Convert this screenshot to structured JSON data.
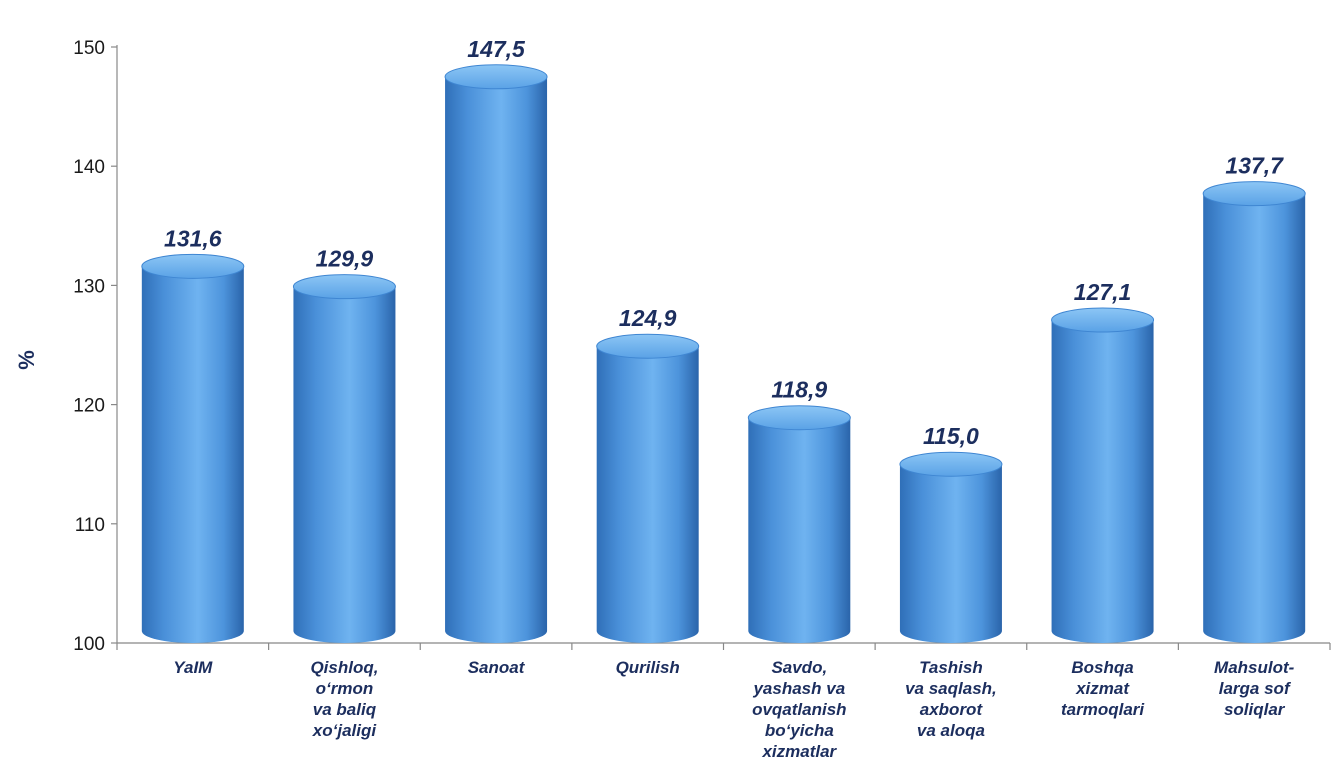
{
  "chart_data": {
    "type": "bar",
    "style": "3d-cylinder",
    "ylabel": "%",
    "xlabel": "",
    "ylim": [
      100,
      150
    ],
    "yticks": [
      100,
      110,
      120,
      130,
      140,
      150
    ],
    "grid": false,
    "legend": "none",
    "bar_color": "#4a90d9",
    "label_color": "#1c2e5e",
    "categories": [
      [
        "YaIM"
      ],
      [
        "Qishloq,",
        "o‘rmon",
        "va baliq",
        "xo‘jaligi"
      ],
      [
        "Sanoat"
      ],
      [
        "Qurilish"
      ],
      [
        "Savdo,",
        "yashash va",
        "ovqatlanish",
        "bo‘yicha",
        "xizmatlar"
      ],
      [
        "Tashish",
        "va saqlash,",
        "axborot",
        "va aloqa"
      ],
      [
        "Boshqa",
        "xizmat",
        "tarmoqlari"
      ],
      [
        "Mahsulot-",
        "larga sof",
        "soliqlar"
      ]
    ],
    "values": [
      131.6,
      129.9,
      147.5,
      124.9,
      118.9,
      115.0,
      127.1,
      137.7
    ],
    "value_labels": [
      "131,6",
      "129,9",
      "147,5",
      "124,9",
      "118,9",
      "115,0",
      "127,1",
      "137,7"
    ]
  }
}
